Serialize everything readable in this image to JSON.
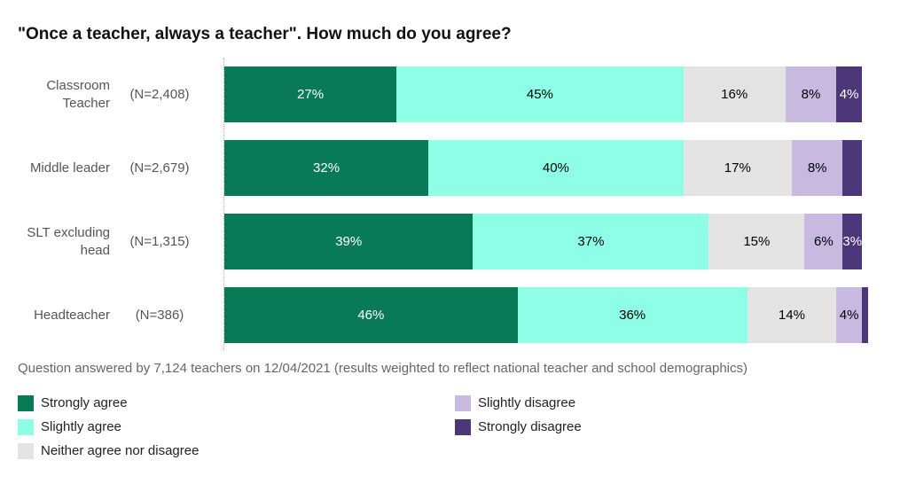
{
  "chart_data": {
    "type": "stacked-bar-horizontal",
    "title": "\"Once a teacher, always a teacher\". How much do you agree?",
    "categories": [
      "Classroom Teacher",
      "Middle leader",
      "SLT excluding head",
      "Headteacher"
    ],
    "n_labels": [
      "(N=2,408)",
      "(N=2,679)",
      "(N=1,315)",
      "(N=386)"
    ],
    "xlim": [
      0,
      100
    ],
    "series": [
      {
        "name": "Strongly agree",
        "color": "#087a55",
        "label_color": "#ffffff",
        "values": [
          27,
          32,
          39,
          46
        ],
        "value_labels": [
          "27%",
          "32%",
          "39%",
          "46%"
        ]
      },
      {
        "name": "Slightly agree",
        "color": "#8effe6",
        "label_color": "#000000",
        "values": [
          45,
          40,
          37,
          36
        ],
        "value_labels": [
          "45%",
          "40%",
          "37%",
          "36%"
        ]
      },
      {
        "name": "Neither agree nor disagree",
        "color": "#e3e3e3",
        "label_color": "#000000",
        "values": [
          16,
          17,
          15,
          14
        ],
        "value_labels": [
          "16%",
          "17%",
          "15%",
          "14%"
        ]
      },
      {
        "name": "Slightly disagree",
        "color": "#c7b9e0",
        "label_color": "#000000",
        "values": [
          8,
          8,
          6,
          4
        ],
        "value_labels": [
          "8%",
          "8%",
          "6%",
          "4%"
        ]
      },
      {
        "name": "Strongly disagree",
        "color": "#4b367a",
        "label_color": "#ffffff",
        "values": [
          4,
          3,
          3,
          1
        ],
        "value_labels": [
          "4%",
          null,
          "3%",
          null
        ]
      }
    ],
    "note": "Question answered by 7,124 teachers on 12/04/2021 (results weighted to reflect national teacher and school demographics)"
  }
}
